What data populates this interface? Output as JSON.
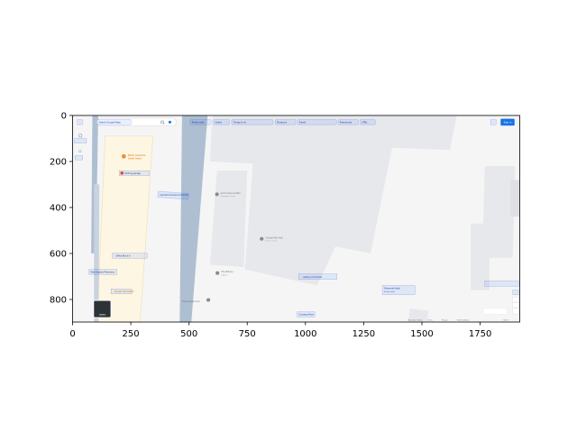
{
  "image": {
    "x_ticks": [
      "0",
      "250",
      "500",
      "750",
      "1000",
      "1250",
      "1500",
      "1750"
    ],
    "y_ticks": [
      "0",
      "200",
      "400",
      "600",
      "800"
    ]
  },
  "map": {
    "search_placeholder": "Search Google Maps",
    "categories": [
      "Restaurants",
      "Hotels",
      "Things to do",
      "Museums",
      "Transit",
      "Pharmacies",
      "ATMs"
    ],
    "sign_in_label": "Sign in",
    "layers_label": "Layers",
    "places": [
      {
        "name": "Bistro example",
        "sub": "Sweet treats"
      },
      {
        "name": "Parking garage"
      },
      {
        "name": "Central Commercial Center",
        "sub": "Shopping mall"
      },
      {
        "name": "Grand Avenue Mall",
        "sub": "Shopping center"
      },
      {
        "name": "Central Park Hall",
        "sub": "Event venue"
      },
      {
        "name": "Office Block A"
      },
      {
        "name": "Main Square Pharmacy"
      },
      {
        "name": "City Bakery",
        "sub": "Bakery"
      },
      {
        "name": "Gallery Art Center"
      },
      {
        "name": "Tourist information"
      },
      {
        "name": "Plaza Restaurant"
      },
      {
        "name": "Crossing Point"
      },
      {
        "name": "Riverside Hotel",
        "sub": "4-star hotel"
      }
    ],
    "footer": [
      "Map data ©2024",
      "Terms",
      "Privacy",
      "Send feedback",
      "500 ft"
    ],
    "colors": {
      "plaza": "#fdf6e3",
      "road": "#aebfd1",
      "building": "#e6e7ec",
      "accent_blue": "#1a73e8",
      "box_stroke": "#2f3bd6",
      "poi_orange": "#f28b2d",
      "poi_red": "#ea4335"
    }
  }
}
